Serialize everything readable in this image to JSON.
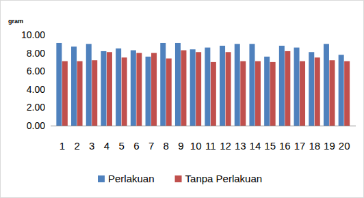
{
  "chart_data": {
    "type": "bar",
    "y_label": "gram",
    "categories": [
      "1",
      "2",
      "3",
      "4",
      "5",
      "6",
      "7",
      "8",
      "9",
      "10",
      "11",
      "12",
      "13",
      "14",
      "15",
      "16",
      "17",
      "18",
      "19",
      "20"
    ],
    "series": [
      {
        "name": "Perlakuan",
        "color": "#4f81bd",
        "values": [
          9.1,
          8.7,
          9.0,
          8.2,
          8.5,
          8.3,
          7.6,
          9.1,
          9.1,
          8.4,
          8.6,
          8.8,
          9.0,
          9.0,
          7.6,
          8.8,
          8.6,
          8.1,
          9.0,
          7.8
        ]
      },
      {
        "name": "Tanpa Perlakuan",
        "color": "#c0504d",
        "values": [
          7.1,
          7.1,
          7.2,
          8.1,
          7.5,
          8.0,
          8.0,
          7.4,
          8.3,
          8.1,
          7.0,
          8.1,
          7.1,
          7.1,
          7.0,
          8.2,
          7.1,
          7.5,
          7.2,
          7.1
        ]
      }
    ],
    "ylim": [
      0,
      10
    ],
    "yticks": [
      {
        "value": 0,
        "label": "0.00"
      },
      {
        "value": 2,
        "label": "2.00"
      },
      {
        "value": 4,
        "label": "4.00"
      },
      {
        "value": 6,
        "label": "6.00"
      },
      {
        "value": 8,
        "label": "8.00"
      },
      {
        "value": 10,
        "label": "10.00"
      }
    ],
    "grid": false,
    "legend": "bottom"
  }
}
